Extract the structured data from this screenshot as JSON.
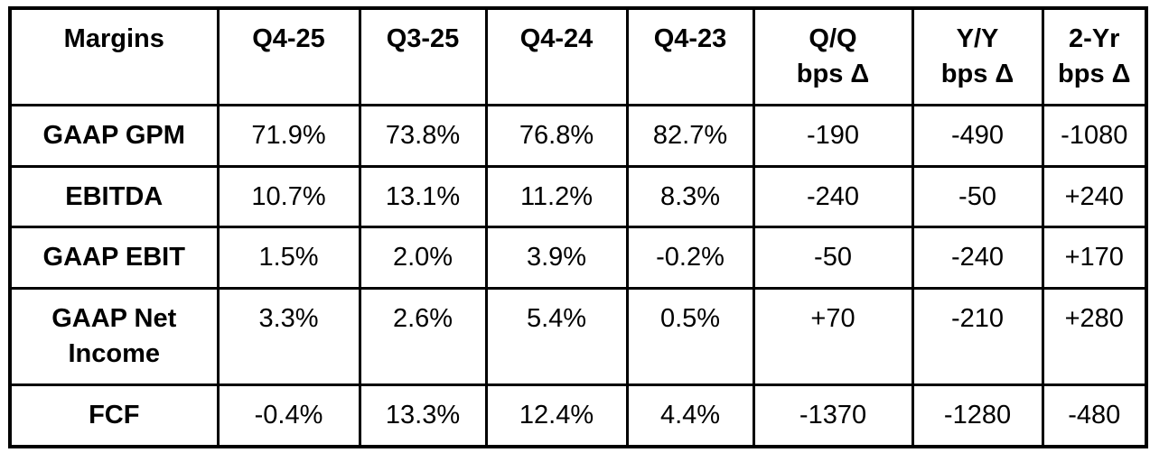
{
  "table": {
    "columns": [
      {
        "line1": "Margins",
        "line2": ""
      },
      {
        "line1": "Q4-25",
        "line2": ""
      },
      {
        "line1": "Q3-25",
        "line2": ""
      },
      {
        "line1": "Q4-24",
        "line2": ""
      },
      {
        "line1": "Q4-23",
        "line2": ""
      },
      {
        "line1": "Q/Q",
        "line2": "bps Δ"
      },
      {
        "line1": "Y/Y",
        "line2": "bps Δ"
      },
      {
        "line1": "2-Yr",
        "line2": "bps Δ"
      }
    ],
    "rows": [
      {
        "label": "GAAP GPM",
        "values": [
          "71.9%",
          "73.8%",
          "76.8%",
          "82.7%",
          "-190",
          "-490",
          "-1080"
        ]
      },
      {
        "label": "EBITDA",
        "values": [
          "10.7%",
          "13.1%",
          "11.2%",
          "8.3%",
          "-240",
          "-50",
          "+240"
        ]
      },
      {
        "label": "GAAP EBIT",
        "values": [
          "1.5%",
          "2.0%",
          "3.9%",
          "-0.2%",
          "-50",
          "-240",
          "+170"
        ]
      },
      {
        "label": "GAAP Net Income",
        "values": [
          "3.3%",
          "2.6%",
          "5.4%",
          "0.5%",
          "+70",
          "-210",
          "+280"
        ]
      },
      {
        "label": "FCF",
        "values": [
          "-0.4%",
          "13.3%",
          "12.4%",
          "4.4%",
          "-1370",
          "-1280",
          "-480"
        ]
      }
    ],
    "colors": {
      "border": "#000000",
      "text": "#000000",
      "background": "#ffffff"
    }
  },
  "chart_data": {
    "type": "table",
    "title": "Margins",
    "columns": [
      "Margins",
      "Q4-25",
      "Q3-25",
      "Q4-24",
      "Q4-23",
      "Q/Q bps Δ",
      "Y/Y bps Δ",
      "2-Yr bps Δ"
    ],
    "rows": [
      [
        "GAAP GPM",
        "71.9%",
        "73.8%",
        "76.8%",
        "82.7%",
        "-190",
        "-490",
        "-1080"
      ],
      [
        "EBITDA",
        "10.7%",
        "13.1%",
        "11.2%",
        "8.3%",
        "-240",
        "-50",
        "+240"
      ],
      [
        "GAAP EBIT",
        "1.5%",
        "2.0%",
        "3.9%",
        "-0.2%",
        "-50",
        "-240",
        "+170"
      ],
      [
        "GAAP Net Income",
        "3.3%",
        "2.6%",
        "5.4%",
        "0.5%",
        "+70",
        "-210",
        "+280"
      ],
      [
        "FCF",
        "-0.4%",
        "13.3%",
        "12.4%",
        "4.4%",
        "-1370",
        "-1280",
        "-480"
      ]
    ]
  }
}
